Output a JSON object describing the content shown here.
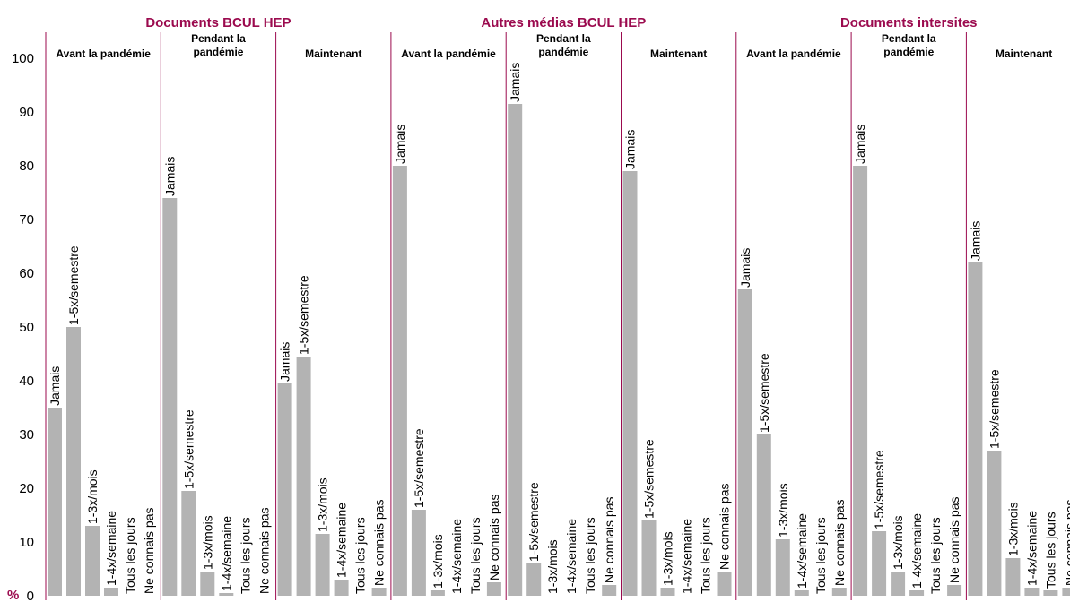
{
  "colors": {
    "accent": "#9b0a4e",
    "bar": "#b3b3b3"
  },
  "chart_data": {
    "type": "bar",
    "unit_label": "%",
    "ylim": [
      0,
      100
    ],
    "yticks": [
      0,
      10,
      20,
      30,
      40,
      50,
      60,
      70,
      80,
      90,
      100
    ],
    "categories": [
      "Jamais",
      "1-5x/semestre",
      "1-3x/mois",
      "1-4x/semaine",
      "Tous les jours",
      "Ne connais pas"
    ],
    "groups": [
      {
        "title": "Documents BCUL HEP",
        "periods": [
          {
            "title": [
              "Avant la pandémie"
            ],
            "values": [
              35,
              50,
              13,
              1.5,
              0,
              0
            ]
          },
          {
            "title": [
              "Pendant la",
              "pandémie"
            ],
            "values": [
              74,
              19.5,
              4.5,
              0.5,
              0,
              0
            ]
          },
          {
            "title": [
              "Maintenant"
            ],
            "values": [
              39.5,
              44.5,
              11.5,
              3,
              0,
              1.5
            ]
          }
        ]
      },
      {
        "title": "Autres médias BCUL HEP",
        "periods": [
          {
            "title": [
              "Avant la pandémie"
            ],
            "values": [
              80,
              16,
              1,
              0,
              0,
              2.5
            ]
          },
          {
            "title": [
              "Pendant la",
              "pandémie"
            ],
            "values": [
              91.5,
              6,
              0,
              0,
              0,
              2
            ]
          },
          {
            "title": [
              "Maintenant"
            ],
            "values": [
              79,
              14,
              1.5,
              0,
              0,
              4.5
            ]
          }
        ]
      },
      {
        "title": "Documents intersites",
        "periods": [
          {
            "title": [
              "Avant la pandémie"
            ],
            "values": [
              57,
              30,
              10.5,
              1,
              0,
              1.5
            ]
          },
          {
            "title": [
              "Pendant la",
              "pandémie"
            ],
            "values": [
              80,
              12,
              4.5,
              1,
              0,
              2
            ]
          },
          {
            "title": [
              "Maintenant"
            ],
            "values": [
              62,
              27,
              7,
              1.5,
              1,
              1.5
            ]
          }
        ]
      }
    ]
  }
}
